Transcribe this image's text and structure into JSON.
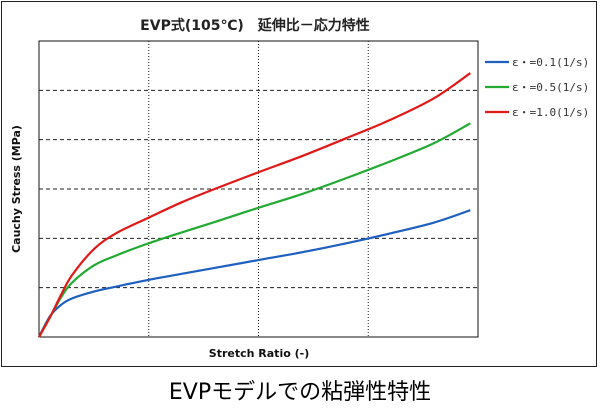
{
  "caption": "EVPモデルでの粘弾性特性",
  "chart_data": {
    "type": "line",
    "title": "EVP式(105℃)　延伸比－応力特性",
    "xlabel": "Stretch Ratio (-)",
    "ylabel": "Cauchy Stress (MPa)",
    "xlim": [
      0,
      4
    ],
    "ylim": [
      0,
      6
    ],
    "grid": true,
    "tick_labels_shown": false,
    "legend_position": "right",
    "series": [
      {
        "name": "ε・=0.1(1/s)",
        "color": "#1f5fbf",
        "x": [
          0,
          0.1,
          0.2,
          0.3,
          0.5,
          0.7,
          1.0,
          1.3,
          1.6,
          2.0,
          2.4,
          2.8,
          3.2,
          3.6,
          3.93
        ],
        "y": [
          0,
          0.42,
          0.65,
          0.78,
          0.92,
          1.02,
          1.16,
          1.28,
          1.4,
          1.56,
          1.72,
          1.9,
          2.1,
          2.32,
          2.57
        ]
      },
      {
        "name": "ε・=0.5(1/s)",
        "color": "#22aa33",
        "x": [
          0,
          0.1,
          0.2,
          0.3,
          0.5,
          0.7,
          1.0,
          1.3,
          1.6,
          2.0,
          2.4,
          2.8,
          3.2,
          3.6,
          3.93
        ],
        "y": [
          0,
          0.4,
          0.8,
          1.1,
          1.45,
          1.65,
          1.9,
          2.12,
          2.33,
          2.62,
          2.9,
          3.22,
          3.56,
          3.93,
          4.33
        ]
      },
      {
        "name": "ε・=1.0(1/s)",
        "color": "#e01818",
        "x": [
          0,
          0.1,
          0.2,
          0.3,
          0.5,
          0.7,
          1.0,
          1.3,
          1.6,
          2.0,
          2.4,
          2.8,
          3.2,
          3.6,
          3.93
        ],
        "y": [
          0,
          0.4,
          0.85,
          1.25,
          1.78,
          2.1,
          2.42,
          2.73,
          3.0,
          3.34,
          3.67,
          4.03,
          4.4,
          4.84,
          5.35
        ]
      }
    ]
  }
}
